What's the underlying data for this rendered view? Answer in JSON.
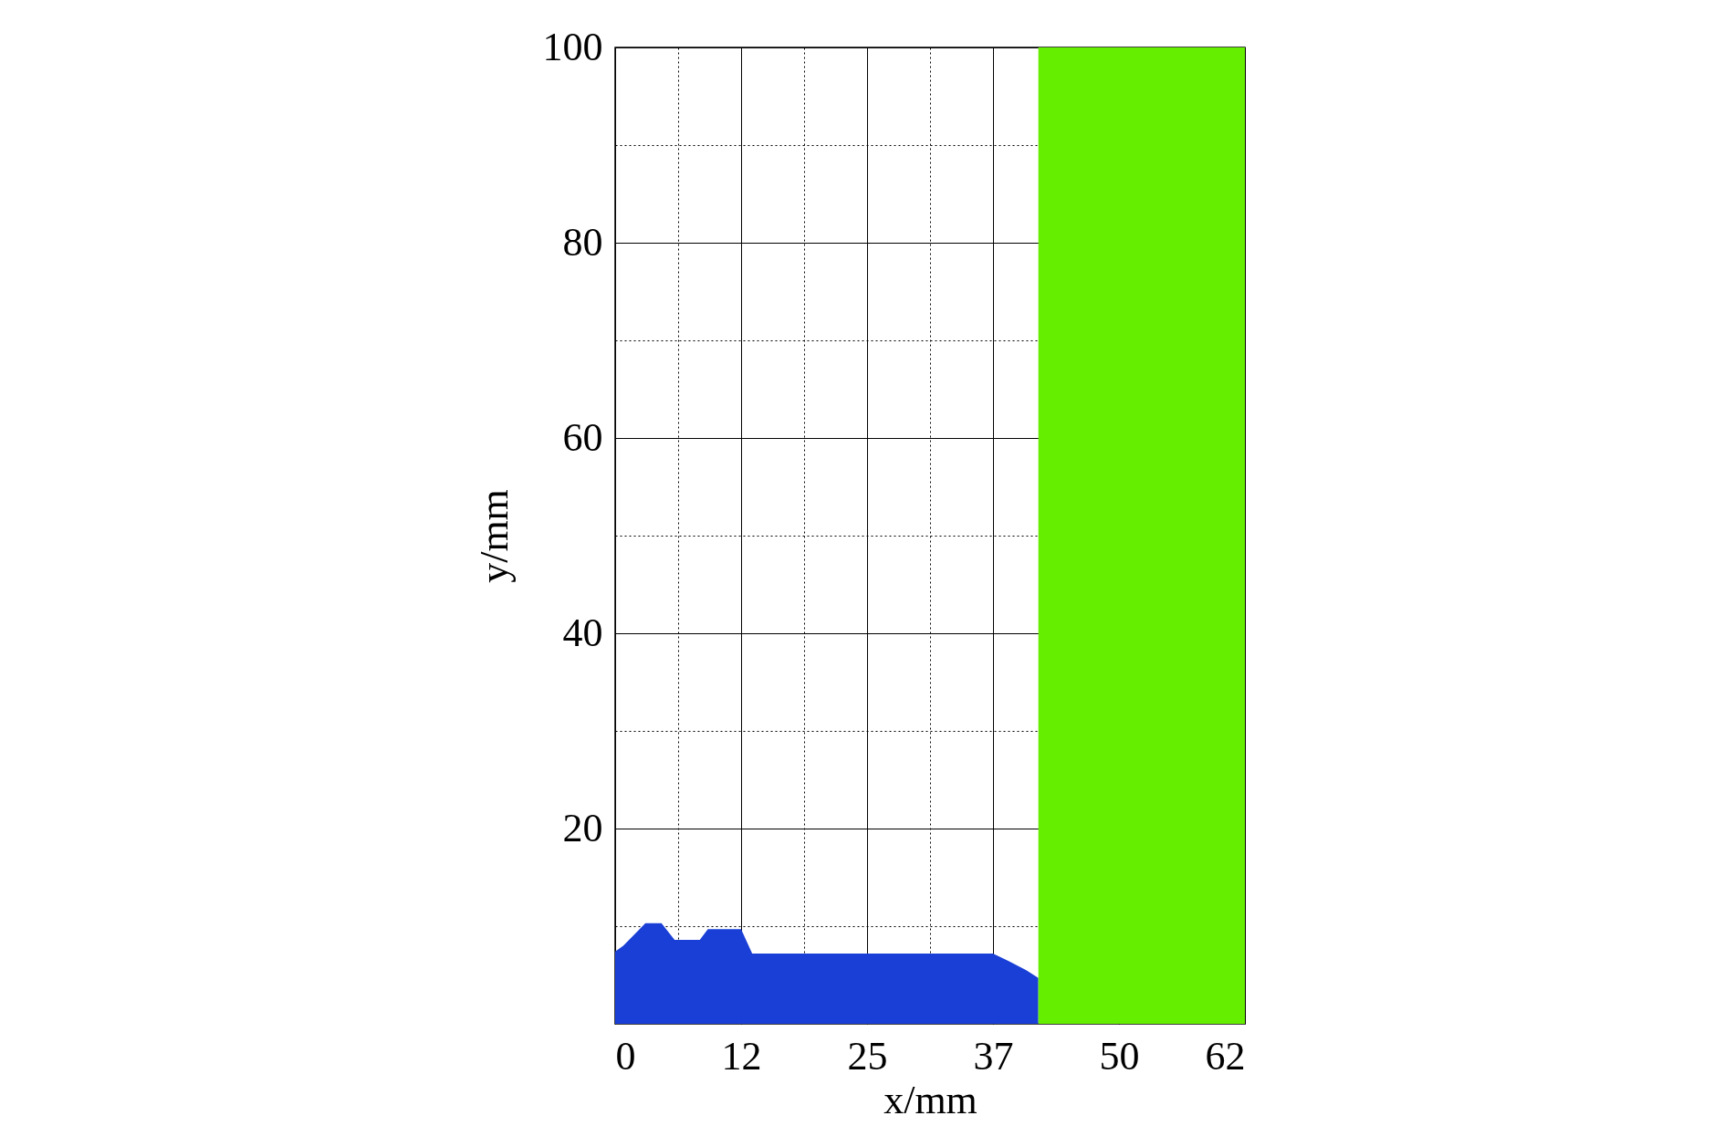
{
  "chart_data": {
    "type": "area",
    "xlabel": "x/mm",
    "ylabel": "y/mm",
    "xlim": [
      0,
      62.5
    ],
    "ylim": [
      0,
      100
    ],
    "xticks": [
      0,
      {
        "value": 6.25,
        "label": null
      },
      {
        "value": 12.5,
        "label": "12"
      },
      {
        "value": 18.75,
        "label": null
      },
      25,
      {
        "value": 31.25,
        "label": null
      },
      {
        "value": 37.5,
        "label": "37"
      },
      50,
      {
        "value": 62.5,
        "label": "62"
      }
    ],
    "yticks": [
      {
        "value": 10,
        "label": null
      },
      20,
      {
        "value": 30,
        "label": null
      },
      40,
      {
        "value": 50,
        "label": null
      },
      60,
      {
        "value": 70,
        "label": null
      },
      80,
      {
        "value": 90,
        "label": null
      },
      100
    ],
    "grid": true,
    "series": [
      {
        "color": "#1a3fd6",
        "x": [
          0,
          0.8,
          3.0,
          4.6,
          5.9,
          8.4,
          9.2,
          12.5,
          13.6,
          37.5,
          39.1,
          40.8,
          42.0
        ],
        "values": [
          7.4,
          8.0,
          10.3,
          10.3,
          8.6,
          8.6,
          9.7,
          9.7,
          7.2,
          7.2,
          6.4,
          5.5,
          4.7
        ]
      }
    ],
    "bands": [
      {
        "axis": "x",
        "from": 42.0,
        "to": 62.5,
        "color": "#66ee00"
      }
    ]
  }
}
